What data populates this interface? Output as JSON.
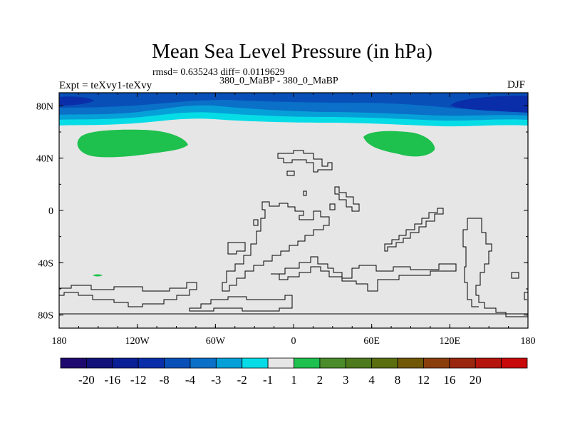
{
  "chart_data": {
    "type": "heatmap",
    "title": "Mean Sea Level Pressure (in hPa)",
    "stats": "rmsd= 0.635243 diff= 0.0119629",
    "subtitle": "380_0_MaBP - 380_0_MaBP",
    "experiment": "Expt = teXvy1-teXvy",
    "season": "DJF",
    "xlim": [
      -180,
      180
    ],
    "ylim": [
      -90,
      90
    ],
    "x_ticks": [
      {
        "value": -180,
        "label": "180"
      },
      {
        "value": -120,
        "label": "120W"
      },
      {
        "value": -60,
        "label": "60W"
      },
      {
        "value": 0,
        "label": "0"
      },
      {
        "value": 60,
        "label": "60E"
      },
      {
        "value": 120,
        "label": "120E"
      },
      {
        "value": 180,
        "label": "180"
      }
    ],
    "y_ticks": [
      {
        "value": 80,
        "label": "80N"
      },
      {
        "value": 40,
        "label": "40N"
      },
      {
        "value": 0,
        "label": "0"
      },
      {
        "value": -40,
        "label": "40S"
      },
      {
        "value": -80,
        "label": "80S"
      }
    ],
    "colorbar": {
      "colors": [
        "#1e0a6e",
        "#12127a",
        "#0a1e96",
        "#0a2eaa",
        "#0850b8",
        "#0a70c8",
        "#06a0d8",
        "#06dce6",
        "#e6e6e6",
        "#1ec04e",
        "#4a8c2a",
        "#4e7a1e",
        "#5a6e10",
        "#705808",
        "#8a3e0c",
        "#9a260e",
        "#b4140c",
        "#c80a0a"
      ],
      "labels": [
        "-20",
        "-16",
        "-12",
        "-8",
        "-4",
        "-3",
        "-2",
        "-1",
        "1",
        "2",
        "3",
        "4",
        "8",
        "12",
        "16",
        "20"
      ]
    },
    "fields": [
      {
        "name": "arctic band",
        "lat_range": [
          65,
          90
        ],
        "value": "-1 to -8"
      },
      {
        "name": "north pacific high",
        "center": [
          -138,
          50
        ],
        "value": "1 to 2"
      },
      {
        "name": "siberian high",
        "center": [
          75,
          50
        ],
        "value": "1 to 2"
      },
      {
        "name": "background",
        "value": "-1 to 1"
      }
    ],
    "legend_colors": {
      "background": "#e6e6e6",
      "positive": "#1ec04e"
    }
  }
}
